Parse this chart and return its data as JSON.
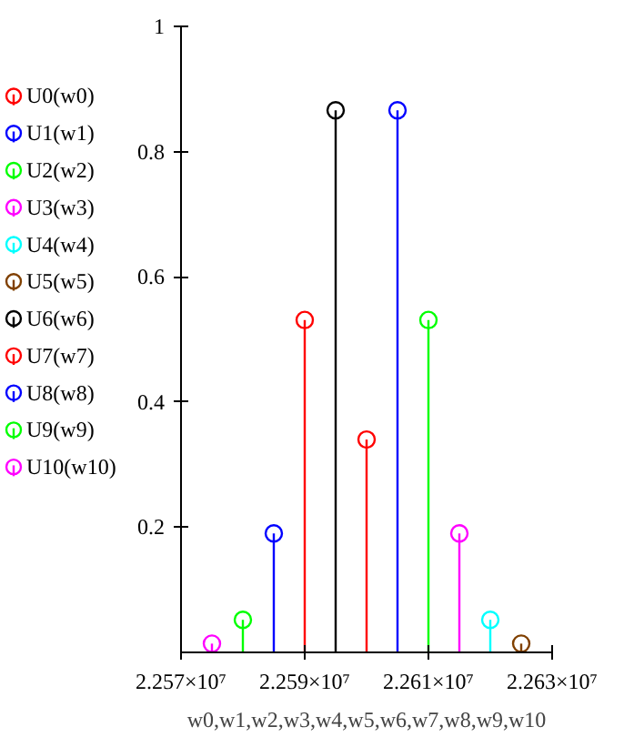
{
  "chart_data": {
    "type": "lollipop",
    "xlabel": "w0,w1,w2,w3,w4,w5,w6,w7,w8,w9,w10",
    "xlim": [
      22570000,
      22630000
    ],
    "xticks": [
      {
        "value": 22570000,
        "label": "2.257×10⁷"
      },
      {
        "value": 22590000,
        "label": "2.259×10⁷"
      },
      {
        "value": 22610000,
        "label": "2.261×10⁷"
      },
      {
        "value": 22630000,
        "label": "2.263×10⁷"
      }
    ],
    "ylim": [
      0,
      1
    ],
    "yticks": [
      0.2,
      0.4,
      0.6,
      0.8,
      1
    ],
    "marker": "circle",
    "legend": "left",
    "grid": false,
    "series": [
      {
        "name": "U0(w0)",
        "color": "#ff0000",
        "x": [
          22600000
        ],
        "values": [
          0.34
        ]
      },
      {
        "name": "U1(w1)",
        "color": "#0000ff",
        "x": [
          22605000
        ],
        "values": [
          0.866
        ]
      },
      {
        "name": "U2(w2)",
        "color": "#00ff00",
        "x": [
          22610000
        ],
        "values": [
          0.531
        ]
      },
      {
        "name": "U3(w3)",
        "color": "#ff00ff",
        "x": [
          22615000
        ],
        "values": [
          0.19
        ]
      },
      {
        "name": "U4(w4)",
        "color": "#00ffff",
        "x": [
          22620000
        ],
        "values": [
          0.052
        ]
      },
      {
        "name": "U5(w5)",
        "color": "#804000",
        "x": [
          22625000
        ],
        "values": [
          0.014
        ]
      },
      {
        "name": "U6(w6)",
        "color": "#000000",
        "x": [
          22595000
        ],
        "values": [
          0.866
        ]
      },
      {
        "name": "U7(w7)",
        "color": "#ff0000",
        "x": [
          22590000
        ],
        "values": [
          0.531
        ]
      },
      {
        "name": "U8(w8)",
        "color": "#0000ff",
        "x": [
          22585000
        ],
        "values": [
          0.19
        ]
      },
      {
        "name": "U9(w9)",
        "color": "#00ff00",
        "x": [
          22580000
        ],
        "values": [
          0.052
        ]
      },
      {
        "name": "U10(w10)",
        "color": "#ff00ff",
        "x": [
          22575000
        ],
        "values": [
          0.014
        ]
      }
    ]
  }
}
